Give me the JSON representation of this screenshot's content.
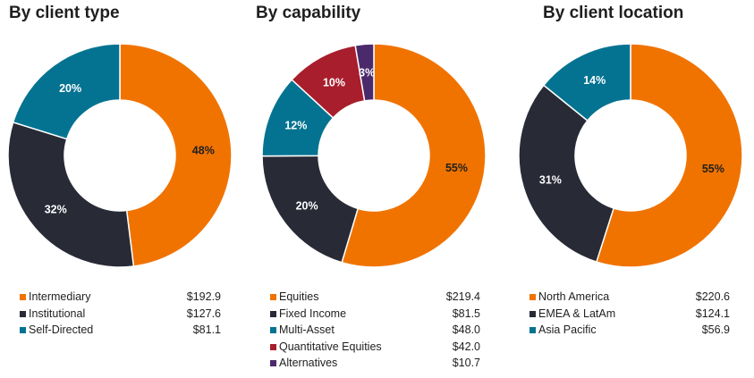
{
  "chart_data": [
    {
      "type": "pie",
      "title": "By client type",
      "categories": [
        "Intermediary",
        "Institutional",
        "Self-Directed"
      ],
      "values": [
        192.9,
        127.6,
        81.1
      ],
      "percent_labels": [
        "48%",
        "32%",
        "20%"
      ],
      "value_labels": [
        "$192.9",
        "$127.6",
        "$81.1"
      ],
      "colors": [
        "#F07300",
        "#282A36",
        "#047391"
      ],
      "label_colors": [
        "#1f1f1f",
        "#ffffff",
        "#ffffff"
      ],
      "legend": "bottom"
    },
    {
      "type": "pie",
      "title": "By capability",
      "categories": [
        "Equities",
        "Fixed Income",
        "Multi-Asset",
        "Quantitative Equities",
        "Alternatives"
      ],
      "values": [
        219.4,
        81.5,
        48.0,
        42.0,
        10.7
      ],
      "percent_labels": [
        "55%",
        "20%",
        "12%",
        "10%",
        "3%"
      ],
      "value_labels": [
        "$219.4",
        "$81.5",
        "$48.0",
        "$42.0",
        "$10.7"
      ],
      "colors": [
        "#F07300",
        "#282A36",
        "#047391",
        "#A81E2D",
        "#4B2A6B"
      ],
      "label_colors": [
        "#1f1f1f",
        "#ffffff",
        "#ffffff",
        "#ffffff",
        "#ffffff"
      ],
      "legend": "bottom"
    },
    {
      "type": "pie",
      "title": "By client location",
      "categories": [
        "North America",
        "EMEA & LatAm",
        "Asia Pacific"
      ],
      "values": [
        220.6,
        124.1,
        56.9
      ],
      "percent_labels": [
        "55%",
        "31%",
        "14%"
      ],
      "value_labels": [
        "$220.6",
        "$124.1",
        "$56.9"
      ],
      "colors": [
        "#F07300",
        "#282A36",
        "#047391"
      ],
      "label_colors": [
        "#1f1f1f",
        "#ffffff",
        "#ffffff"
      ],
      "legend": "bottom"
    }
  ]
}
